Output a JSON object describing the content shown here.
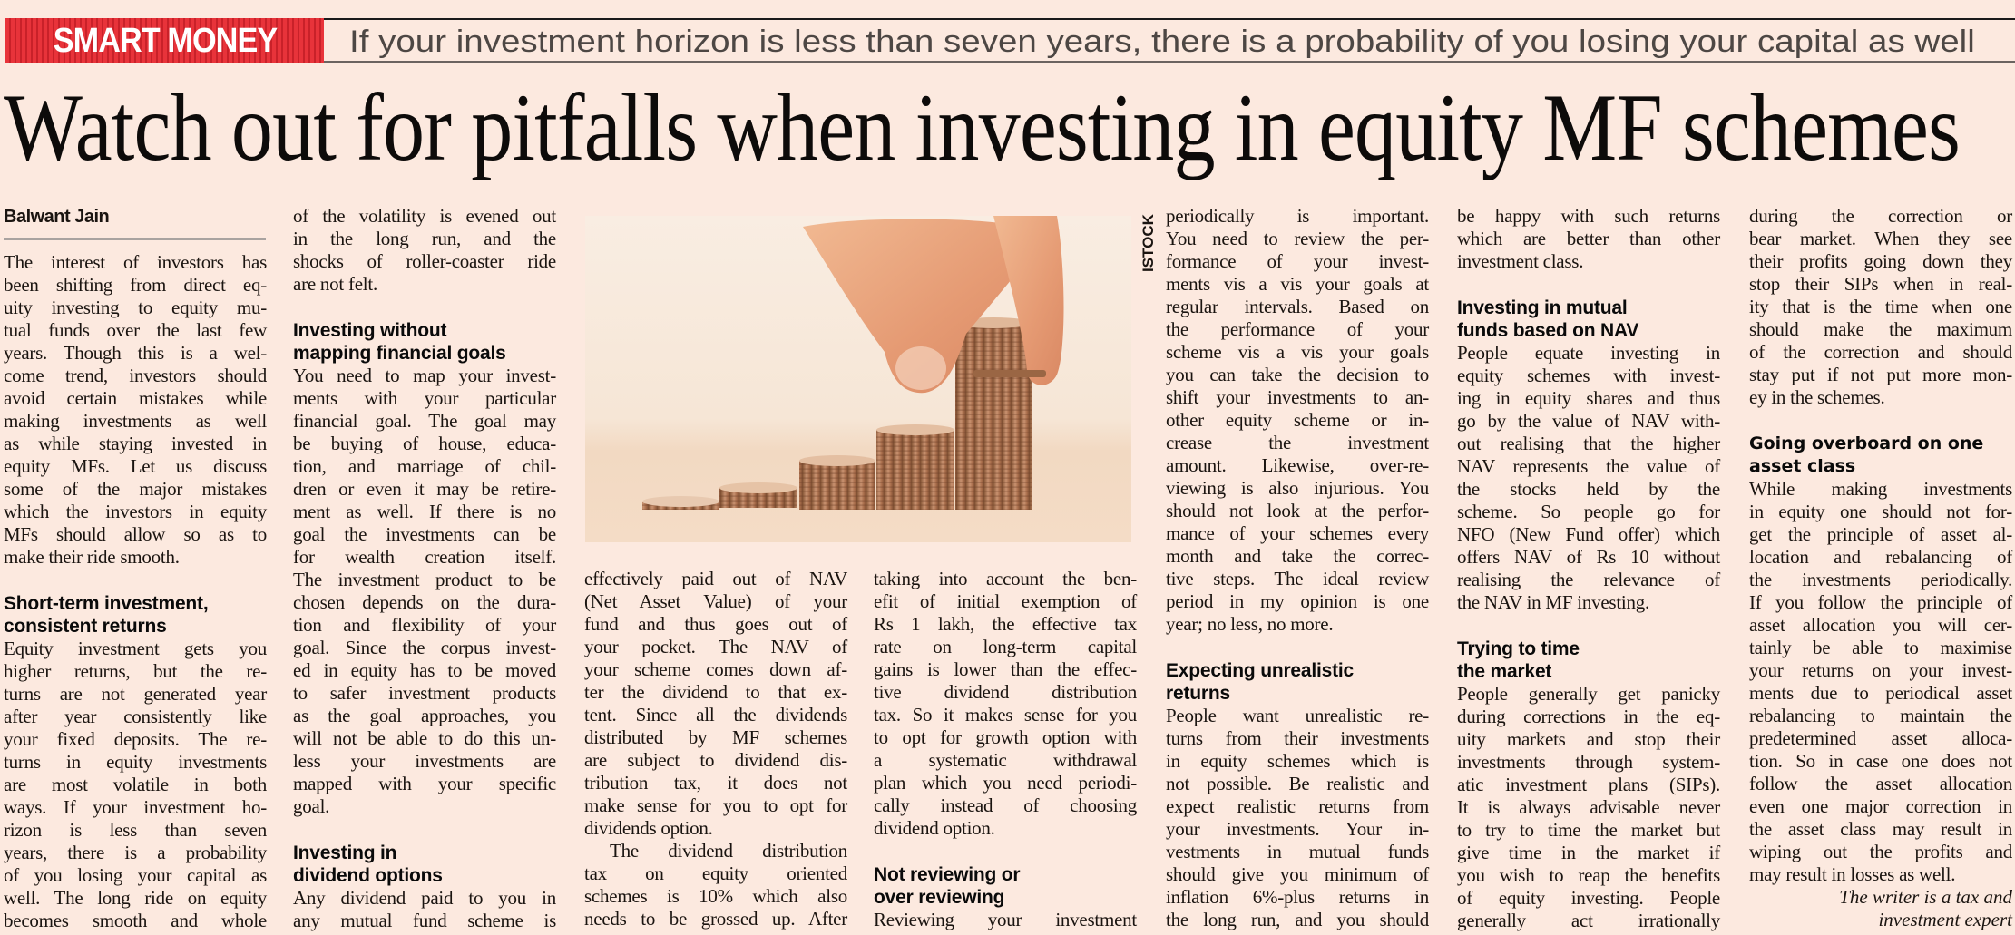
{
  "banner": {
    "kicker": "SMART MONEY",
    "tagline": "If your investment horizon is less than seven years, there is a probability of you losing your capital as well",
    "kicker_color": "#e8333a"
  },
  "headline": "Watch out for pitfalls when investing in equity MF schemes",
  "byline": "Balwant Jain",
  "photo": {
    "credit": "ISTOCK",
    "subject": "coin-stacks-photo"
  },
  "columns": [
    {
      "blocks": [
        {
          "type": "p",
          "lines": [
            "The interest of investors has",
            "been shifting from direct eq-",
            "uity investing to equity mu-",
            "tual funds over the last few",
            "years. Though this is a wel-",
            "come trend, investors should",
            "avoid certain mistakes while",
            "making investments as well",
            "as while staying invested in",
            "equity MFs. Let us discuss",
            "some of the major mistakes",
            "which the investors in equity",
            "MFs should allow so as to",
            "make their ride smooth."
          ]
        },
        {
          "type": "h",
          "lines": [
            "Short-term investment,",
            "consistent returns"
          ]
        },
        {
          "type": "p",
          "lines": [
            "Equity investment gets you",
            "higher returns, but the re-",
            "turns are not generated year",
            "after year consistently like",
            "your fixed deposits. The re-",
            "turns in equity investments",
            "are most volatile in both",
            "ways. If your investment ho-",
            "rizon is less than seven",
            "years, there is a probability",
            "of you losing your capital as",
            "well. The long ride on equity",
            "becomes smooth and whole"
          ],
          "continues": true
        }
      ]
    },
    {
      "blocks": [
        {
          "type": "p",
          "lines": [
            "of the volatility is evened out",
            "in the long run, and the",
            "shocks of roller-coaster ride",
            "are not felt."
          ]
        },
        {
          "type": "h",
          "lines": [
            "Investing without",
            "mapping financial goals"
          ]
        },
        {
          "type": "p",
          "lines": [
            "You need to map your invest-",
            "ments with your particular",
            "financial goal. The goal may",
            "be buying of house, educa-",
            "tion, and marriage of chil-",
            "dren or even it may be retire-",
            "ment as well. If there is no",
            "goal the investments can be",
            "for wealth creation itself.",
            "The investment product to be",
            "chosen depends on the dura-",
            "tion and flexibility of your",
            "goal. Since the corpus invest-",
            "ed in equity has to be moved",
            "to safer investment products",
            "as the goal approaches, you",
            "will not be able to do this un-",
            "less your investments are",
            "mapped with your specific",
            "goal."
          ]
        },
        {
          "type": "h",
          "lines": [
            "Investing in",
            "dividend options"
          ]
        },
        {
          "type": "p",
          "lines": [
            "Any dividend paid to you in",
            "any mutual fund scheme is"
          ],
          "continues": true
        }
      ]
    },
    {
      "blocks": [
        {
          "type": "p",
          "lines": [
            "effectively paid out of NAV",
            "(Net Asset Value) of your",
            "fund and thus goes out of",
            "your pocket. The NAV of",
            "your scheme comes down af-",
            "ter the dividend to that ex-",
            "tent. Since all the dividends",
            "distributed by MF schemes",
            "are subject to dividend dis-",
            "tribution tax, it does not",
            "make sense for you to opt for",
            "dividends option."
          ]
        },
        {
          "type": "p",
          "indent": true,
          "nogap": true,
          "lines": [
            "The dividend distribution",
            "tax on equity oriented",
            "schemes is 10% which also",
            "needs to be grossed up. After"
          ],
          "continues": true
        }
      ]
    },
    {
      "blocks": [
        {
          "type": "p",
          "lines": [
            "taking into account the ben-",
            "efit of initial exemption of",
            "Rs 1 lakh, the effective tax",
            "rate on long-term capital",
            "gains is lower than the effec-",
            "tive dividend distribution",
            "tax. So it makes sense for you",
            "to opt for growth option with",
            "a systematic withdrawal",
            "plan which you need periodi-",
            "cally instead of choosing",
            "dividend option."
          ]
        },
        {
          "type": "h",
          "lines": [
            "Not reviewing or",
            "over reviewing"
          ]
        },
        {
          "type": "p",
          "lines": [
            "Reviewing your investment"
          ],
          "continues": true
        }
      ]
    },
    {
      "blocks": [
        {
          "type": "p",
          "lines": [
            "periodically is important.",
            "You need to review the per-",
            "formance of your invest-",
            "ments vis a vis your goals at",
            "regular intervals. Based on",
            "the performance of your",
            "scheme vis a vis your goals",
            "you can take the decision to",
            "shift your investments to an-",
            "other equity scheme or in-",
            "crease the investment",
            "amount. Likewise, over-re-",
            "viewing is also injurious. You",
            "should not look at the perfor-",
            "mance of your schemes every",
            "month and take the correc-",
            "tive steps. The ideal review",
            "period in my opinion is one",
            "year; no less, no more."
          ]
        },
        {
          "type": "h",
          "lines": [
            "Expecting unrealistic",
            "returns"
          ]
        },
        {
          "type": "p",
          "lines": [
            "People want unrealistic re-",
            "turns from their investments",
            "in equity schemes which is",
            "not possible. Be realistic and",
            "expect realistic returns from",
            "your investments. Your in-",
            "vestments in mutual funds",
            "should give you minimum of",
            "inflation 6%-plus returns in",
            "the long run, and you should"
          ],
          "continues": true
        }
      ]
    },
    {
      "blocks": [
        {
          "type": "p",
          "lines": [
            "be happy with such returns",
            "which are better than other",
            "investment class."
          ]
        },
        {
          "type": "h",
          "lines": [
            "Investing in mutual",
            "funds based on NAV"
          ]
        },
        {
          "type": "p",
          "lines": [
            "People equate investing in",
            "equity schemes with invest-",
            "ing in equity shares and thus",
            "go by the value of NAV with-",
            "out realising that the higher",
            "NAV represents the value of",
            "the stocks held by the",
            "scheme. So people go for",
            "NFO (New Fund offer) which",
            "offers NAV of Rs 10 without",
            "realising the relevance of",
            "the NAV in MF investing."
          ]
        },
        {
          "type": "h",
          "lines": [
            "Trying to time",
            "the market"
          ]
        },
        {
          "type": "p",
          "lines": [
            "People generally get panicky",
            "during corrections in the eq-",
            "uity markets and stop their",
            "investments through system-",
            "atic investment plans (SIPs).",
            "It is always advisable never",
            "to try to time the market but",
            "give time in the market if",
            "you wish to reap the benefits",
            "of equity investing. People",
            "generally act irrationally"
          ],
          "continues": true
        }
      ]
    },
    {
      "blocks": [
        {
          "type": "p",
          "lines": [
            "during the correction or",
            "bear market. When they see",
            "their profits going down they",
            "stop their SIPs when in real-",
            "ity that is the time when one",
            "should make the maximum",
            "of the correction and should",
            "stay put if not put more mon-",
            "ey in the schemes."
          ]
        },
        {
          "type": "h",
          "wide": true,
          "lines": [
            "Going overboard on one",
            "asset class"
          ]
        },
        {
          "type": "p",
          "lines": [
            "While making investments",
            "in equity one should not for-",
            "get the principle of asset al-",
            "location and rebalancing of",
            "the investments periodically.",
            "If you follow the principle of",
            "asset allocation you will cer-",
            "tainly be able to maximise",
            "your returns on your invest-",
            "ments due to periodical asset",
            "rebalancing to maintain the",
            "predetermined asset alloca-",
            "tion. So in case one does not",
            "follow the asset allocation",
            "even one major correction in",
            "the asset class may result in",
            "wiping out the profits and",
            "may result in losses as well."
          ]
        },
        {
          "type": "sig",
          "lines": [
            "The writer is a tax and",
            "investment expert"
          ]
        }
      ]
    }
  ]
}
